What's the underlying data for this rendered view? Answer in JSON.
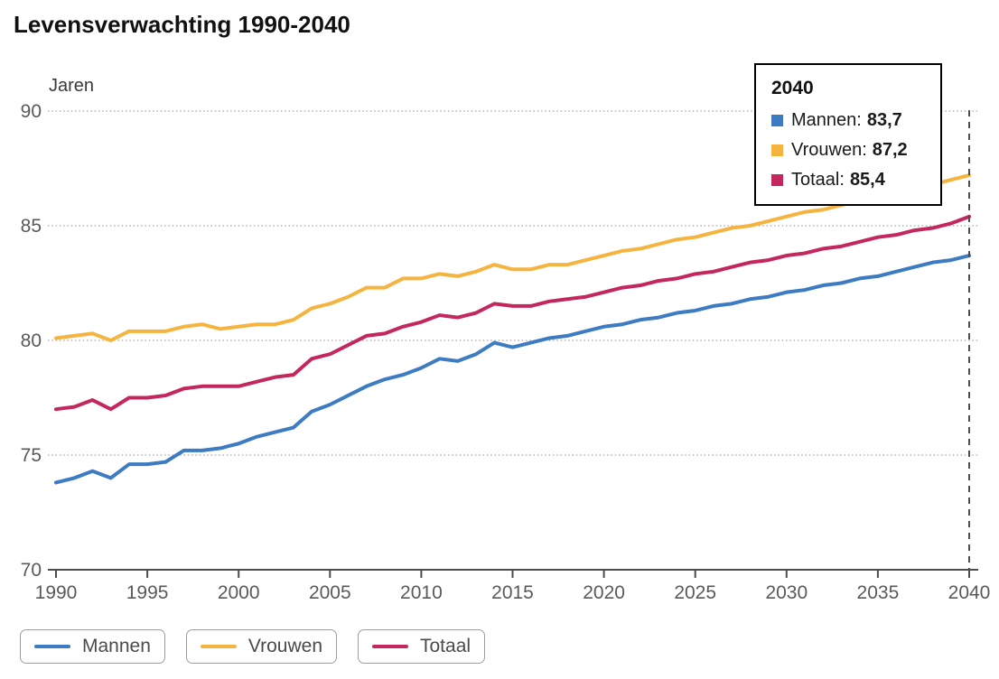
{
  "header": {
    "title": "Levensverwachting 1990-2040"
  },
  "chart_data": {
    "type": "line",
    "title": "Levensverwachting 1990-2040",
    "xlabel": "",
    "ylabel": "Jaren",
    "ylim": [
      70,
      90
    ],
    "y_ticks": [
      70,
      75,
      80,
      85,
      90
    ],
    "xlim": [
      1990,
      2040
    ],
    "x_ticks": [
      1990,
      1995,
      2000,
      2005,
      2010,
      2015,
      2020,
      2025,
      2030,
      2035,
      2040
    ],
    "grid": "dotted-horizontal",
    "legend_position": "bottom",
    "highlight_year": 2040,
    "years": [
      1990,
      1991,
      1992,
      1993,
      1994,
      1995,
      1996,
      1997,
      1998,
      1999,
      2000,
      2001,
      2002,
      2003,
      2004,
      2005,
      2006,
      2007,
      2008,
      2009,
      2010,
      2011,
      2012,
      2013,
      2014,
      2015,
      2016,
      2017,
      2018,
      2019,
      2020,
      2021,
      2022,
      2023,
      2024,
      2025,
      2026,
      2027,
      2028,
      2029,
      2030,
      2031,
      2032,
      2033,
      2034,
      2035,
      2036,
      2037,
      2038,
      2039,
      2040
    ],
    "series": [
      {
        "name": "Mannen",
        "color": "#3D7CC2",
        "values": [
          73.8,
          74.0,
          74.3,
          74.0,
          74.6,
          74.6,
          74.7,
          75.2,
          75.2,
          75.3,
          75.5,
          75.8,
          76.0,
          76.2,
          76.9,
          77.2,
          77.6,
          78.0,
          78.3,
          78.5,
          78.8,
          79.2,
          79.1,
          79.4,
          79.9,
          79.7,
          79.9,
          80.1,
          80.2,
          80.4,
          80.6,
          80.7,
          80.9,
          81.0,
          81.2,
          81.3,
          81.5,
          81.6,
          81.8,
          81.9,
          82.1,
          82.2,
          82.4,
          82.5,
          82.7,
          82.8,
          83.0,
          83.2,
          83.4,
          83.5,
          83.7
        ]
      },
      {
        "name": "Vrouwen",
        "color": "#F5B43F",
        "values": [
          80.1,
          80.2,
          80.3,
          80.0,
          80.4,
          80.4,
          80.4,
          80.6,
          80.7,
          80.5,
          80.6,
          80.7,
          80.7,
          80.9,
          81.4,
          81.6,
          81.9,
          82.3,
          82.3,
          82.7,
          82.7,
          82.9,
          82.8,
          83.0,
          83.3,
          83.1,
          83.1,
          83.3,
          83.3,
          83.5,
          83.7,
          83.9,
          84.0,
          84.2,
          84.4,
          84.5,
          84.7,
          84.9,
          85.0,
          85.2,
          85.4,
          85.6,
          85.7,
          85.9,
          86.1,
          86.3,
          86.4,
          86.6,
          86.8,
          87.0,
          87.2
        ]
      },
      {
        "name": "Totaal",
        "color": "#C3275E",
        "values": [
          77.0,
          77.1,
          77.4,
          77.0,
          77.5,
          77.5,
          77.6,
          77.9,
          78.0,
          78.0,
          78.0,
          78.2,
          78.4,
          78.5,
          79.2,
          79.4,
          79.8,
          80.2,
          80.3,
          80.6,
          80.8,
          81.1,
          81.0,
          81.2,
          81.6,
          81.5,
          81.5,
          81.7,
          81.8,
          81.9,
          82.1,
          82.3,
          82.4,
          82.6,
          82.7,
          82.9,
          83.0,
          83.2,
          83.4,
          83.5,
          83.7,
          83.8,
          84.0,
          84.1,
          84.3,
          84.5,
          84.6,
          84.8,
          84.9,
          85.1,
          85.4
        ]
      }
    ],
    "colors": {
      "axis": "#4d4d4d",
      "grid": "#a3a3a3",
      "tick_text": "#595959"
    }
  },
  "tooltip": {
    "title": "2040",
    "items": [
      {
        "label": "Mannen:",
        "value": "83,7",
        "color": "#3D7CC2"
      },
      {
        "label": "Vrouwen:",
        "value": "87,2",
        "color": "#F5B43F"
      },
      {
        "label": "Totaal:",
        "value": "85,4",
        "color": "#C3275E"
      }
    ]
  },
  "legend": {
    "items": [
      {
        "label": "Mannen",
        "color": "#3D7CC2"
      },
      {
        "label": "Vrouwen",
        "color": "#F5B43F"
      },
      {
        "label": "Totaal",
        "color": "#C3275E"
      }
    ]
  }
}
